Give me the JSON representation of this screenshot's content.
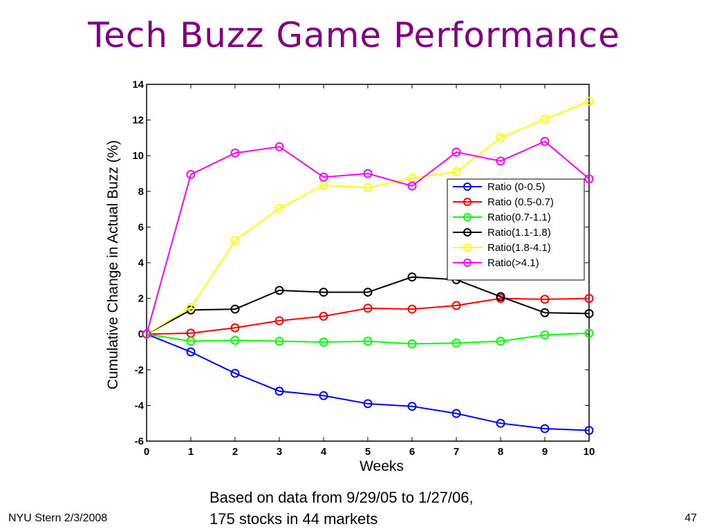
{
  "slide": {
    "title": "Tech Buzz Game Performance",
    "caption_line1": "Based on data from 9/29/05 to 1/27/06,",
    "caption_line2": "175 stocks in 44 markets",
    "footer_left": "NYU Stern 2/3/2008",
    "page_number": "47"
  },
  "chart_data": {
    "type": "line",
    "title": "",
    "xlabel": "Weeks",
    "ylabel": "Cumulative Change in Actual Buzz (%)",
    "xlim": [
      0,
      10
    ],
    "ylim": [
      -6,
      14
    ],
    "x_ticks": [
      "0",
      "1",
      "2",
      "3",
      "4",
      "5",
      "6",
      "7",
      "8",
      "9",
      "10"
    ],
    "y_ticks": [
      "-6",
      "-4",
      "-2",
      "0",
      "2",
      "4",
      "6",
      "8",
      "10",
      "12",
      "14"
    ],
    "grid": false,
    "legend_position": "right",
    "marker": "circle",
    "x": [
      0,
      1,
      2,
      3,
      4,
      5,
      6,
      7,
      8,
      9,
      10
    ],
    "series": [
      {
        "name": "Ratio (0-0.5)",
        "color": "#0000ff",
        "values": [
          0,
          -1.0,
          -2.2,
          -3.2,
          -3.45,
          -3.9,
          -4.05,
          -4.45,
          -5.0,
          -5.3,
          -5.4
        ]
      },
      {
        "name": "Ratio (0.5-0.7)",
        "color": "#ff0000",
        "values": [
          0,
          0.05,
          0.35,
          0.75,
          1.0,
          1.45,
          1.4,
          1.6,
          2.0,
          1.95,
          2.0
        ]
      },
      {
        "name": "Ratio(0.7-1.1)",
        "color": "#00ff00",
        "values": [
          0,
          -0.4,
          -0.35,
          -0.4,
          -0.45,
          -0.4,
          -0.55,
          -0.5,
          -0.4,
          -0.05,
          0.05
        ]
      },
      {
        "name": "Ratio(1.1-1.8)",
        "color": "#000000",
        "values": [
          0,
          1.35,
          1.4,
          2.45,
          2.35,
          2.35,
          3.2,
          3.05,
          2.1,
          1.2,
          1.15
        ]
      },
      {
        "name": "Ratio(1.8-4.1)",
        "color": "#ffff00",
        "values": [
          0,
          1.5,
          5.25,
          7.05,
          8.35,
          8.2,
          8.75,
          9.1,
          11.0,
          12.05,
          13.05
        ]
      },
      {
        "name": "Ratio(>4.1)",
        "color": "#ff00ff",
        "values": [
          0,
          8.95,
          10.15,
          10.5,
          8.8,
          9.0,
          8.3,
          10.2,
          9.7,
          10.8,
          8.7
        ]
      }
    ]
  }
}
